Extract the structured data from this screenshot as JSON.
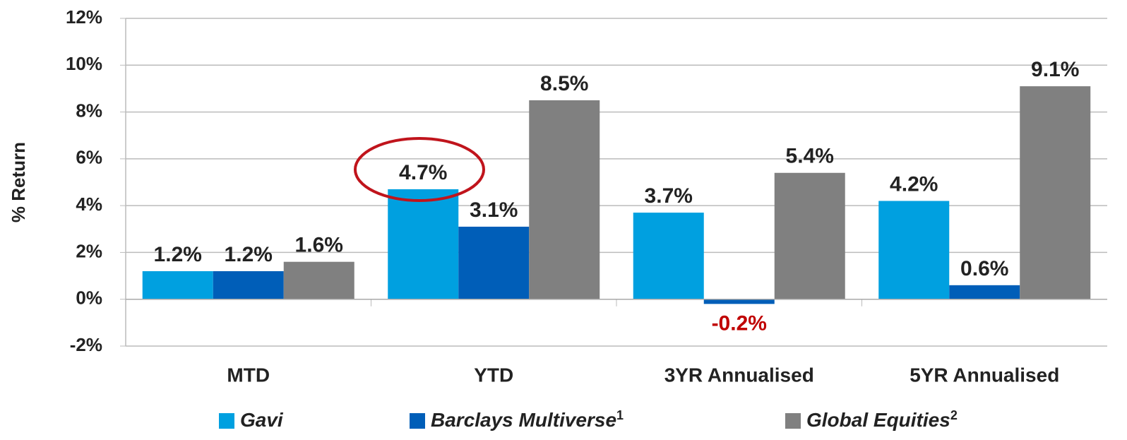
{
  "chart_data": {
    "type": "bar",
    "y_label": "% Return",
    "categories": [
      "MTD",
      "YTD",
      "3YR Annualised",
      "5YR Annualised"
    ],
    "series": [
      {
        "name": "Gavi",
        "color": "#00a0e0",
        "values": [
          1.2,
          4.7,
          3.7,
          4.2
        ],
        "value_labels": [
          "1.2%",
          "4.7%",
          "3.7%",
          "4.2%"
        ]
      },
      {
        "name": "Barclays Multiverse",
        "footnote": "1",
        "color": "#005eb8",
        "values": [
          1.2,
          3.1,
          -0.2,
          0.6
        ],
        "value_labels": [
          "1.2%",
          "3.1%",
          "-0.2%",
          "0.6%"
        ]
      },
      {
        "name": "Global Equities",
        "footnote": "2",
        "color": "#808080",
        "values": [
          1.6,
          8.5,
          5.4,
          9.1
        ],
        "value_labels": [
          "1.6%",
          "8.5%",
          "5.4%",
          "9.1%"
        ]
      }
    ],
    "negative_label_color": "#c00000",
    "ylim": [
      -2,
      12
    ],
    "yticks": [
      {
        "value": -2,
        "label": "-2%"
      },
      {
        "value": 0,
        "label": "0%"
      },
      {
        "value": 2,
        "label": "2%"
      },
      {
        "value": 4,
        "label": "4%"
      },
      {
        "value": 6,
        "label": "6%"
      },
      {
        "value": 8,
        "label": "8%"
      },
      {
        "value": 10,
        "label": "10%"
      },
      {
        "value": 12,
        "label": "12%"
      }
    ],
    "grid": true
  }
}
